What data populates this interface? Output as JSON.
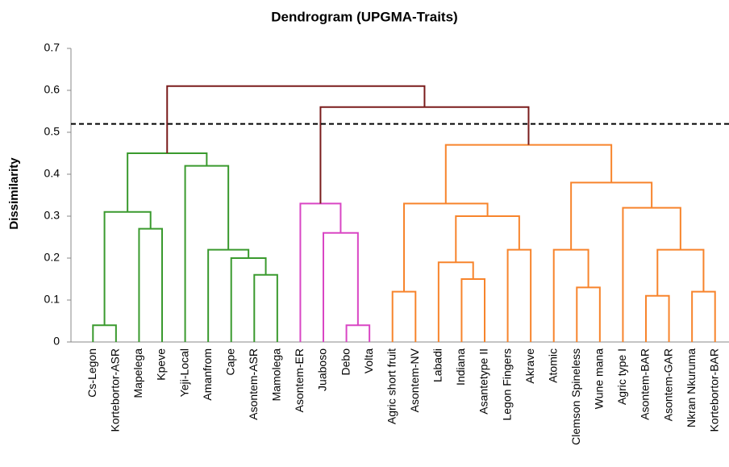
{
  "chart_data": {
    "type": "dendrogram",
    "title": "Dendrogram (UPGMA-Traits)",
    "y_label": "Dissimilarity",
    "ylim": [
      0,
      0.7
    ],
    "yticks": [
      0,
      0.1,
      0.2,
      0.3,
      0.4,
      0.5,
      0.6,
      0.7
    ],
    "threshold": 0.52,
    "leaves": [
      "Cs-Legon",
      "Kortebortor-ASR",
      "Mapelega",
      "Kpeve",
      "Yeji-Local",
      "Amanfrom",
      "Cape",
      "Asontem-ASR",
      "Mamolega",
      "Asontem-ER",
      "Juaboso",
      "Debo",
      "Volta",
      "Agric short fruit",
      "Asontem-NV",
      "Labadi",
      "Indiana",
      "Asantetype II",
      "Legon Fingers",
      "Akrave",
      "Atomic",
      "Clemson Spineless",
      "Wune mana",
      "Agric type I",
      "Asontem-BAR",
      "Asontem-GAR",
      "Nkran Nkuruma",
      "Kortebortor-BAR"
    ],
    "merges": [
      {
        "children": [
          0,
          1
        ],
        "height": 0.04,
        "color": "#3a9a2e"
      },
      {
        "children": [
          2,
          3
        ],
        "height": 0.27,
        "color": "#3a9a2e"
      },
      {
        "children": [
          28,
          29
        ],
        "height": 0.31,
        "color": "#3a9a2e"
      },
      {
        "children": [
          7,
          8
        ],
        "height": 0.16,
        "color": "#3a9a2e"
      },
      {
        "children": [
          6,
          31
        ],
        "height": 0.2,
        "color": "#3a9a2e"
      },
      {
        "children": [
          5,
          32
        ],
        "height": 0.22,
        "color": "#3a9a2e"
      },
      {
        "children": [
          4,
          33
        ],
        "height": 0.42,
        "color": "#3a9a2e"
      },
      {
        "children": [
          30,
          34
        ],
        "height": 0.45,
        "color": "#3a9a2e"
      },
      {
        "children": [
          11,
          12
        ],
        "height": 0.04,
        "color": "#d946c4"
      },
      {
        "children": [
          10,
          36
        ],
        "height": 0.26,
        "color": "#d946c4"
      },
      {
        "children": [
          9,
          37
        ],
        "height": 0.33,
        "color": "#d946c4"
      },
      {
        "children": [
          13,
          14
        ],
        "height": 0.12,
        "color": "#f7842c"
      },
      {
        "children": [
          16,
          17
        ],
        "height": 0.15,
        "color": "#f7842c"
      },
      {
        "children": [
          15,
          40
        ],
        "height": 0.19,
        "color": "#f7842c"
      },
      {
        "children": [
          18,
          19
        ],
        "height": 0.22,
        "color": "#f7842c"
      },
      {
        "children": [
          41,
          42
        ],
        "height": 0.3,
        "color": "#f7842c"
      },
      {
        "children": [
          39,
          43
        ],
        "height": 0.33,
        "color": "#f7842c"
      },
      {
        "children": [
          21,
          22
        ],
        "height": 0.13,
        "color": "#f7842c"
      },
      {
        "children": [
          20,
          45
        ],
        "height": 0.22,
        "color": "#f7842c"
      },
      {
        "children": [
          24,
          25
        ],
        "height": 0.11,
        "color": "#f7842c"
      },
      {
        "children": [
          26,
          27
        ],
        "height": 0.12,
        "color": "#f7842c"
      },
      {
        "children": [
          47,
          48
        ],
        "height": 0.22,
        "color": "#f7842c"
      },
      {
        "children": [
          23,
          49
        ],
        "height": 0.32,
        "color": "#f7842c"
      },
      {
        "children": [
          46,
          50
        ],
        "height": 0.38,
        "color": "#f7842c"
      },
      {
        "children": [
          44,
          51
        ],
        "height": 0.47,
        "color": "#f7842c"
      },
      {
        "children": [
          38,
          52
        ],
        "height": 0.56,
        "color": "#7a1c1c"
      },
      {
        "children": [
          35,
          53
        ],
        "height": 0.61,
        "color": "#7a1c1c"
      }
    ]
  }
}
